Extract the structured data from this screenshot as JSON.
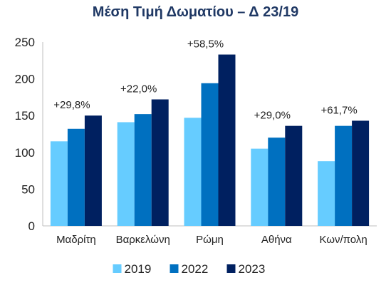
{
  "chart_data": {
    "type": "bar",
    "title": "Μέση Τιμή Δωματίου – Δ 23/19",
    "categories": [
      "Μαδρίτη",
      "Βαρκελώνη",
      "Ρώμη",
      "Αθήνα",
      "Κων/πολη"
    ],
    "series": [
      {
        "name": "2019",
        "color": "#66ccff",
        "values": [
          115,
          141,
          147,
          105,
          88
        ]
      },
      {
        "name": "2022",
        "color": "#0070c0",
        "values": [
          132,
          152,
          194,
          120,
          136
        ]
      },
      {
        "name": "2023",
        "color": "#002060",
        "values": [
          150,
          172,
          233,
          136,
          143
        ]
      }
    ],
    "annotations": [
      "+29,8%",
      "+22,0%",
      "+58,5%",
      "+29,0%",
      "+61,7%"
    ],
    "ylim": [
      0,
      250
    ],
    "yticks": [
      "0",
      "50",
      "100",
      "150",
      "200",
      "250"
    ],
    "xlabel": "",
    "ylabel": "",
    "grid": false,
    "legend": "bottom"
  }
}
